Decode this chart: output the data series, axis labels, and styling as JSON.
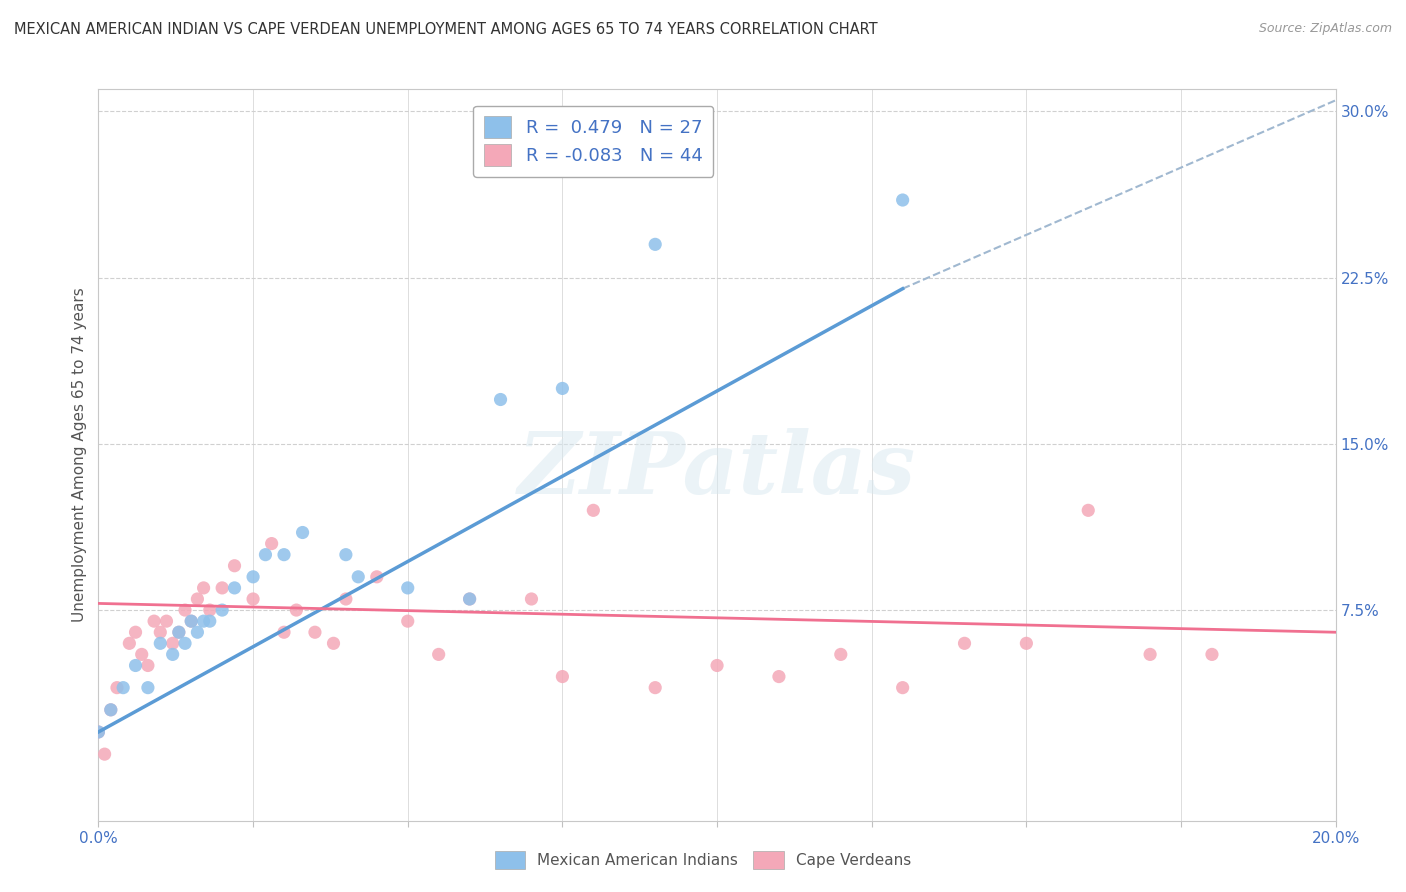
{
  "title": "MEXICAN AMERICAN INDIAN VS CAPE VERDEAN UNEMPLOYMENT AMONG AGES 65 TO 74 YEARS CORRELATION CHART",
  "source": "Source: ZipAtlas.com",
  "ylabel": "Unemployment Among Ages 65 to 74 years",
  "background_color": "#ffffff",
  "grid_color": "#d0d0d0",
  "watermark_text": "ZIPatlas",
  "blue_color": "#8ec0ea",
  "pink_color": "#f4a8b8",
  "blue_line_color": "#5b9bd5",
  "pink_line_color": "#f07090",
  "dashed_line_color": "#a0b8d0",
  "R_blue": 0.479,
  "N_blue": 27,
  "R_pink": -0.083,
  "N_pink": 44,
  "xlim": [
    0.0,
    0.2
  ],
  "ylim": [
    -0.02,
    0.31
  ],
  "ytick_vals": [
    0.075,
    0.15,
    0.225,
    0.3
  ],
  "ytick_labels": [
    "7.5%",
    "15.0%",
    "22.5%",
    "30.0%"
  ],
  "xtick_vals": [
    0.0,
    0.025,
    0.05,
    0.075,
    0.1,
    0.125,
    0.15,
    0.175,
    0.2
  ],
  "xtick_labels": [
    "0.0%",
    "",
    "",
    "",
    "",
    "",
    "",
    "",
    "20.0%"
  ],
  "blue_scatter_x": [
    0.0,
    0.002,
    0.004,
    0.006,
    0.008,
    0.01,
    0.012,
    0.013,
    0.014,
    0.015,
    0.016,
    0.017,
    0.018,
    0.02,
    0.022,
    0.025,
    0.027,
    0.03,
    0.033,
    0.04,
    0.042,
    0.05,
    0.06,
    0.065,
    0.075,
    0.09,
    0.13
  ],
  "blue_scatter_y": [
    0.02,
    0.03,
    0.04,
    0.05,
    0.04,
    0.06,
    0.055,
    0.065,
    0.06,
    0.07,
    0.065,
    0.07,
    0.07,
    0.075,
    0.085,
    0.09,
    0.1,
    0.1,
    0.11,
    0.1,
    0.09,
    0.085,
    0.08,
    0.17,
    0.175,
    0.24,
    0.26
  ],
  "pink_scatter_x": [
    0.0,
    0.001,
    0.002,
    0.003,
    0.005,
    0.006,
    0.007,
    0.008,
    0.009,
    0.01,
    0.011,
    0.012,
    0.013,
    0.014,
    0.015,
    0.016,
    0.017,
    0.018,
    0.02,
    0.022,
    0.025,
    0.028,
    0.03,
    0.032,
    0.035,
    0.038,
    0.04,
    0.045,
    0.05,
    0.055,
    0.06,
    0.07,
    0.075,
    0.08,
    0.09,
    0.1,
    0.11,
    0.12,
    0.13,
    0.14,
    0.15,
    0.16,
    0.17,
    0.18
  ],
  "pink_scatter_y": [
    0.02,
    0.01,
    0.03,
    0.04,
    0.06,
    0.065,
    0.055,
    0.05,
    0.07,
    0.065,
    0.07,
    0.06,
    0.065,
    0.075,
    0.07,
    0.08,
    0.085,
    0.075,
    0.085,
    0.095,
    0.08,
    0.105,
    0.065,
    0.075,
    0.065,
    0.06,
    0.08,
    0.09,
    0.07,
    0.055,
    0.08,
    0.08,
    0.045,
    0.12,
    0.04,
    0.05,
    0.045,
    0.055,
    0.04,
    0.06,
    0.06,
    0.12,
    0.055,
    0.055
  ],
  "blue_line_x0": 0.0,
  "blue_line_y0": 0.02,
  "blue_line_x1": 0.13,
  "blue_line_y1": 0.22,
  "pink_line_x0": 0.0,
  "pink_line_y0": 0.078,
  "pink_line_x1": 0.2,
  "pink_line_y1": 0.065,
  "dash_line_x0": 0.13,
  "dash_line_y0": 0.22,
  "dash_line_x1": 0.2,
  "dash_line_y1": 0.305
}
